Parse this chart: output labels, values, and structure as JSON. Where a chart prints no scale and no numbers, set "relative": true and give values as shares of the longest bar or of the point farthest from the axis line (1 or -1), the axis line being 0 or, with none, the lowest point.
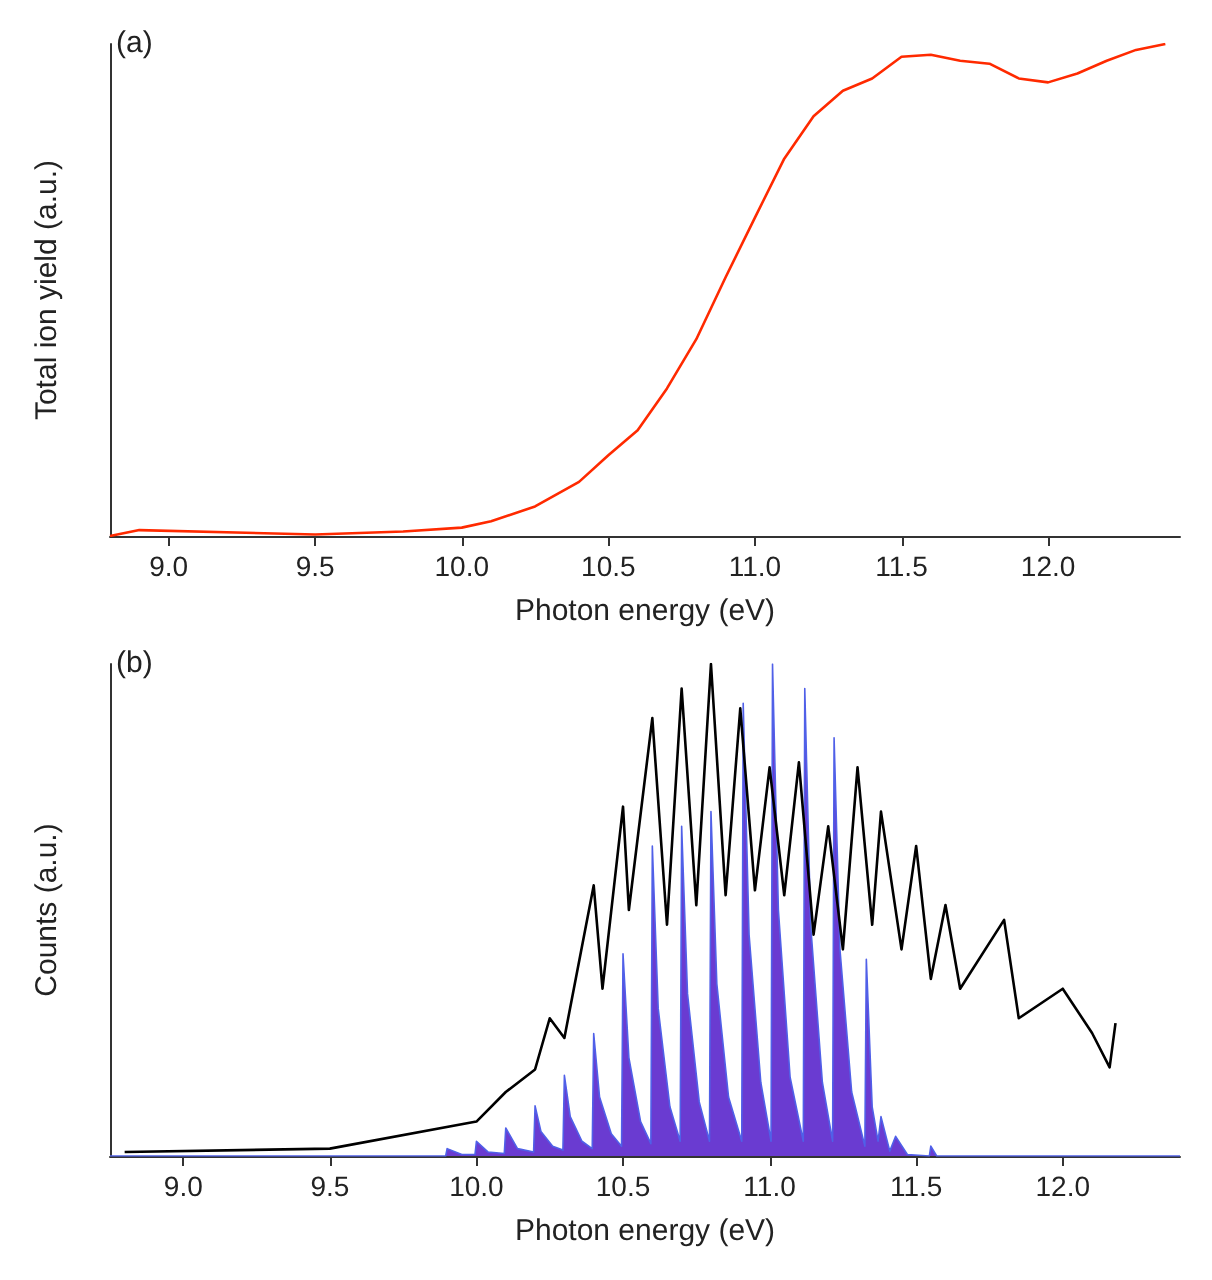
{
  "chart_data": [
    {
      "type": "line",
      "relative": true,
      "xlabel": "Photon energy (eV)",
      "ylabel": "Total ion yield (a.u.)",
      "annotations": [
        "(a)"
      ],
      "xlim": [
        8.8,
        12.45
      ],
      "xticks": [
        {
          "value": 9,
          "label": "9.0"
        },
        9.5,
        {
          "value": 10,
          "label": "10.0"
        },
        10.5,
        {
          "value": 11,
          "label": "11.0"
        },
        11.5,
        {
          "value": 12,
          "label": "12.0"
        }
      ],
      "grid": false,
      "marker": "none",
      "series": [
        {
          "color": "#ff2a00",
          "x": [
            8.8,
            8.9,
            9.5,
            9.8,
            10.0,
            10.1,
            10.25,
            10.4,
            10.5,
            10.6,
            10.7,
            10.8,
            10.9,
            11.0,
            11.1,
            11.2,
            11.3,
            11.4,
            11.5,
            11.6,
            11.7,
            11.8,
            11.9,
            12.0,
            12.1,
            12.2,
            12.3,
            12.4
          ],
          "values": [
            0,
            0.012,
            0.003,
            0.009,
            0.017,
            0.03,
            0.06,
            0.11,
            0.164,
            0.215,
            0.3,
            0.4,
            0.526,
            0.647,
            0.767,
            0.853,
            0.905,
            0.93,
            0.974,
            0.978,
            0.966,
            0.96,
            0.93,
            0.922,
            0.94,
            0.966,
            0.988,
            1.0
          ]
        }
      ]
    },
    {
      "type": "line",
      "relative": true,
      "xlabel": "Photon energy (eV)",
      "ylabel": "Counts (a.u.)",
      "annotations": [
        "(b)"
      ],
      "xlim": [
        8.75,
        12.4
      ],
      "xticks": [
        {
          "value": 9,
          "label": "9.0"
        },
        9.5,
        {
          "value": 10,
          "label": "10.0"
        },
        10.5,
        {
          "value": 11,
          "label": "11.0"
        },
        11.5,
        {
          "value": 12,
          "label": "12.0"
        }
      ],
      "grid": false,
      "marker": "none",
      "series": [
        {
          "type": "area",
          "color": "#6a3bd1",
          "x": [
            8.75,
            9.85,
            9.895,
            9.9,
            9.95,
            9.995,
            10.0,
            10.04,
            10.095,
            10.1,
            10.14,
            10.195,
            10.2,
            10.22,
            10.26,
            10.295,
            10.3,
            10.32,
            10.36,
            10.395,
            10.4,
            10.42,
            10.46,
            10.495,
            10.5,
            10.52,
            10.56,
            10.595,
            10.6,
            10.62,
            10.66,
            10.695,
            10.7,
            10.72,
            10.76,
            10.795,
            10.8,
            10.82,
            10.86,
            10.905,
            10.91,
            10.93,
            10.97,
            11.005,
            11.01,
            11.03,
            11.07,
            11.115,
            11.12,
            11.14,
            11.18,
            11.215,
            11.22,
            11.24,
            11.28,
            11.325,
            11.33,
            11.35,
            11.37,
            11.38,
            11.41,
            11.43,
            11.47,
            11.545,
            11.55,
            11.57,
            12.4
          ],
          "values": [
            0,
            0,
            0,
            0.015,
            0.003,
            0.003,
            0.03,
            0.008,
            0.005,
            0.057,
            0.015,
            0.008,
            0.102,
            0.05,
            0.02,
            0.012,
            0.164,
            0.08,
            0.03,
            0.015,
            0.249,
            0.12,
            0.045,
            0.02,
            0.411,
            0.2,
            0.07,
            0.025,
            0.63,
            0.3,
            0.1,
            0.03,
            0.67,
            0.33,
            0.11,
            0.03,
            0.7,
            0.35,
            0.12,
            0.03,
            0.92,
            0.45,
            0.15,
            0.03,
            1.0,
            0.5,
            0.16,
            0.03,
            0.95,
            0.47,
            0.15,
            0.03,
            0.85,
            0.42,
            0.13,
            0.02,
            0.4,
            0.1,
            0.03,
            0.08,
            0.01,
            0.04,
            0.003,
            0,
            0.02,
            0,
            0
          ]
        },
        {
          "color": "#000000",
          "x": [
            8.8,
            9.5,
            10.0,
            10.1,
            10.2,
            10.25,
            10.3,
            10.4,
            10.43,
            10.5,
            10.52,
            10.6,
            10.65,
            10.7,
            10.75,
            10.8,
            10.85,
            10.9,
            10.95,
            11.0,
            11.05,
            11.1,
            11.15,
            11.2,
            11.25,
            11.3,
            11.35,
            11.38,
            11.45,
            11.5,
            11.55,
            11.6,
            11.65,
            11.8,
            11.85,
            12.0,
            12.1,
            12.16,
            12.18
          ],
          "values": [
            0.008,
            0.015,
            0.07,
            0.13,
            0.176,
            0.28,
            0.24,
            0.55,
            0.34,
            0.71,
            0.5,
            0.89,
            0.47,
            0.95,
            0.51,
            1.0,
            0.53,
            0.91,
            0.54,
            0.79,
            0.53,
            0.8,
            0.45,
            0.67,
            0.42,
            0.79,
            0.47,
            0.7,
            0.42,
            0.63,
            0.36,
            0.51,
            0.34,
            0.48,
            0.28,
            0.34,
            0.25,
            0.18,
            0.27
          ]
        }
      ]
    }
  ]
}
